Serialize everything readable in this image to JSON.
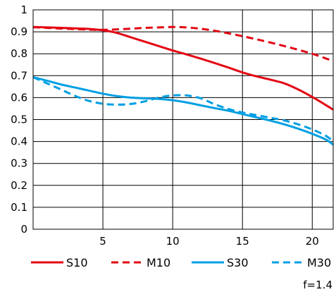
{
  "chart_data": {
    "type": "line",
    "xlim": [
      0,
      21.5
    ],
    "ylim": [
      0,
      1
    ],
    "x_ticks": [
      5,
      10,
      15,
      20
    ],
    "y_ticks": [
      0,
      0.1,
      0.2,
      0.3,
      0.4,
      0.5,
      0.6,
      0.7,
      0.8,
      0.9,
      1
    ],
    "x_tick_labels": [
      "5",
      "10",
      "15",
      "20"
    ],
    "y_tick_labels": [
      "0",
      "0.1",
      "0.2",
      "0.3",
      "0.4",
      "0.5",
      "0.6",
      "0.7",
      "0.8",
      "0.9",
      "1"
    ],
    "grid": true,
    "legend_position": "bottom",
    "note": "f=1.4",
    "series": [
      {
        "name": "S10",
        "color": "#e30613",
        "dash": "solid",
        "x": [
          0,
          2,
          4,
          5,
          6,
          7,
          8,
          9,
          10,
          11,
          12,
          13,
          14,
          15,
          16,
          17,
          18,
          19,
          20,
          21,
          21.5
        ],
        "y": [
          0.922,
          0.918,
          0.913,
          0.907,
          0.895,
          0.875,
          0.855,
          0.835,
          0.815,
          0.797,
          0.778,
          0.758,
          0.737,
          0.715,
          0.697,
          0.682,
          0.665,
          0.637,
          0.603,
          0.565,
          0.545
        ]
      },
      {
        "name": "M10",
        "color": "#e30613",
        "dash": "dashed",
        "x": [
          0,
          2,
          4,
          5,
          6,
          7,
          8,
          9,
          10,
          11,
          12,
          13,
          14,
          15,
          16,
          17,
          18,
          19,
          20,
          21,
          21.5
        ],
        "y": [
          0.921,
          0.915,
          0.91,
          0.909,
          0.911,
          0.914,
          0.918,
          0.92,
          0.922,
          0.92,
          0.914,
          0.905,
          0.893,
          0.88,
          0.866,
          0.851,
          0.835,
          0.818,
          0.8,
          0.778,
          0.767
        ]
      },
      {
        "name": "S30",
        "color": "#009fe3",
        "dash": "solid",
        "x": [
          0,
          1,
          2,
          3,
          4,
          5,
          6,
          7,
          8,
          9,
          10,
          11,
          12,
          13,
          14,
          15,
          16,
          17,
          18,
          19,
          20,
          21,
          21.5
        ],
        "y": [
          0.693,
          0.677,
          0.66,
          0.646,
          0.632,
          0.618,
          0.607,
          0.6,
          0.597,
          0.594,
          0.588,
          0.578,
          0.565,
          0.552,
          0.54,
          0.525,
          0.51,
          0.495,
          0.478,
          0.458,
          0.435,
          0.408,
          0.385
        ]
      },
      {
        "name": "M30",
        "color": "#009fe3",
        "dash": "dashed",
        "x": [
          0,
          1,
          2,
          3,
          4,
          5,
          6,
          7,
          8,
          9,
          10,
          11,
          12,
          13,
          14,
          15,
          16,
          17,
          18,
          19,
          20,
          21,
          21.5
        ],
        "y": [
          0.693,
          0.665,
          0.637,
          0.608,
          0.585,
          0.572,
          0.568,
          0.571,
          0.583,
          0.6,
          0.61,
          0.61,
          0.597,
          0.57,
          0.548,
          0.532,
          0.52,
          0.508,
          0.496,
          0.478,
          0.455,
          0.425,
          0.4
        ]
      }
    ]
  }
}
